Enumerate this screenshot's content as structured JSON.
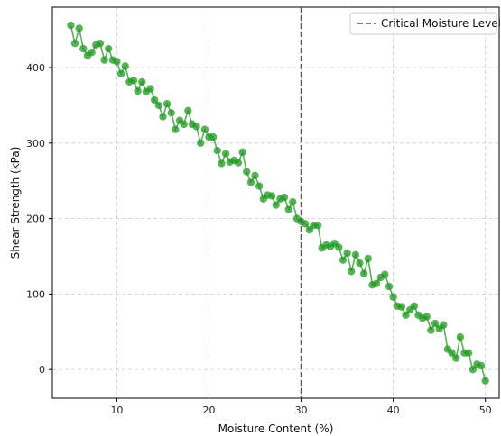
{
  "chart_data": {
    "type": "line",
    "title": "",
    "xlabel": "Moisture Content (%)",
    "ylabel": "Shear Strength (kPa)",
    "xlim": [
      3,
      51.5
    ],
    "ylim": [
      -38,
      480
    ],
    "xticks": [
      10,
      20,
      30,
      40,
      50
    ],
    "yticks": [
      0,
      100,
      200,
      300,
      400
    ],
    "grid": true,
    "legend": {
      "placement": "top-right",
      "entries": [
        "Critical Moisture Level"
      ]
    },
    "critical_line": {
      "x": 30,
      "label": "Critical Moisture Level",
      "color": "#555555",
      "style": "dashed"
    },
    "series": [
      {
        "color": "#1f9a1f",
        "marker": "circle",
        "x": [
          5.0,
          5.45,
          5.91,
          6.36,
          6.82,
          7.27,
          7.73,
          8.18,
          8.64,
          9.09,
          9.55,
          10.0,
          10.45,
          10.91,
          11.36,
          11.82,
          12.27,
          12.73,
          13.18,
          13.64,
          14.09,
          14.55,
          15.0,
          15.45,
          15.91,
          16.36,
          16.82,
          17.27,
          17.73,
          18.18,
          18.64,
          19.09,
          19.55,
          20.0,
          20.45,
          20.91,
          21.36,
          21.82,
          22.27,
          22.73,
          23.18,
          23.64,
          24.09,
          24.55,
          25.0,
          25.45,
          25.91,
          26.36,
          26.82,
          27.27,
          27.73,
          28.18,
          28.64,
          29.09,
          29.55,
          30.0,
          30.45,
          30.91,
          31.36,
          31.82,
          32.27,
          32.73,
          33.18,
          33.64,
          34.09,
          34.55,
          35.0,
          35.45,
          35.91,
          36.36,
          36.82,
          37.27,
          37.73,
          38.18,
          38.64,
          39.09,
          39.55,
          40.0,
          40.45,
          40.91,
          41.36,
          41.82,
          42.27,
          42.73,
          43.18,
          43.64,
          44.09,
          44.55,
          45.0,
          45.45,
          45.91,
          46.36,
          46.82,
          47.27,
          47.73,
          48.18,
          48.64,
          49.09,
          49.55,
          50.0
        ],
        "y": [
          456,
          432,
          452,
          425,
          416,
          420,
          430,
          432,
          410,
          425,
          410,
          408,
          392,
          402,
          381,
          383,
          369,
          381,
          368,
          372,
          357,
          350,
          335,
          352,
          340,
          318,
          330,
          325,
          343,
          325,
          322,
          300,
          318,
          308,
          308,
          290,
          273,
          286,
          275,
          277,
          274,
          288,
          262,
          248,
          257,
          243,
          226,
          231,
          230,
          218,
          226,
          228,
          212,
          222,
          200,
          196,
          193,
          185,
          191,
          191,
          161,
          165,
          163,
          167,
          162,
          145,
          154,
          130,
          152,
          141,
          127,
          147,
          112,
          114,
          122,
          126,
          110,
          96,
          84,
          83,
          72,
          79,
          84,
          72,
          68,
          70,
          52,
          61,
          54,
          59,
          27,
          22,
          15,
          43,
          22,
          22,
          0,
          7,
          5,
          -15
        ]
      }
    ]
  }
}
